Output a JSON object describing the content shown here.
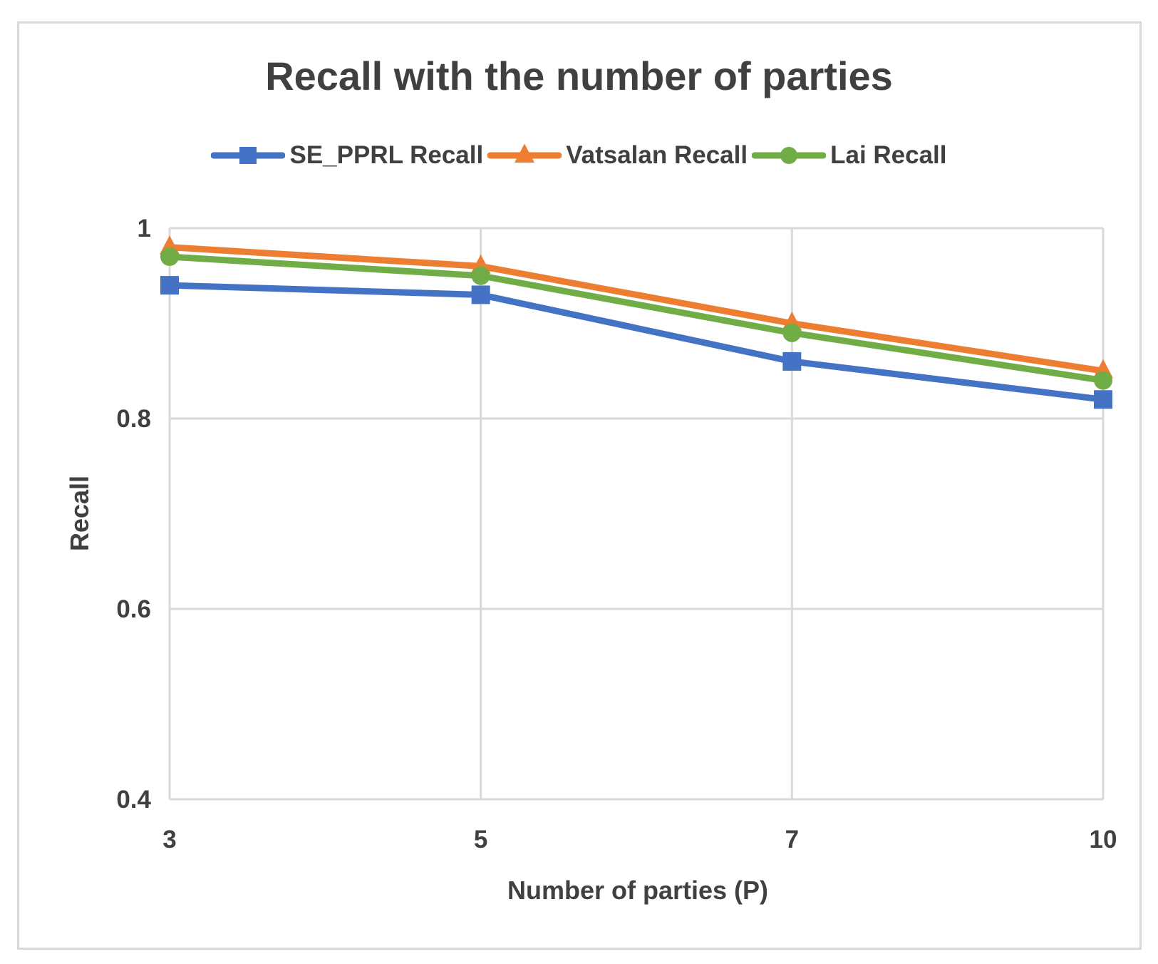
{
  "chart_data": {
    "type": "line",
    "title": "Recall with the number of parties",
    "xlabel": "Number of parties (P)",
    "ylabel": "Recall",
    "categories": [
      "3",
      "5",
      "7",
      "10"
    ],
    "ylim": [
      0.4,
      1
    ],
    "yticks": [
      "0.4",
      "0.6",
      "0.8",
      "1"
    ],
    "grid": true,
    "legend_position": "top",
    "series": [
      {
        "name": "SE_PPRL Recall",
        "values": [
          0.94,
          0.93,
          0.86,
          0.82
        ],
        "color": "#4472C4",
        "marker": "square"
      },
      {
        "name": "Vatsalan Recall",
        "values": [
          0.98,
          0.96,
          0.9,
          0.85
        ],
        "color": "#ED7D31",
        "marker": "triangle"
      },
      {
        "name": "Lai Recall",
        "values": [
          0.97,
          0.95,
          0.89,
          0.84
        ],
        "color": "#70AD47",
        "marker": "circle"
      }
    ]
  }
}
